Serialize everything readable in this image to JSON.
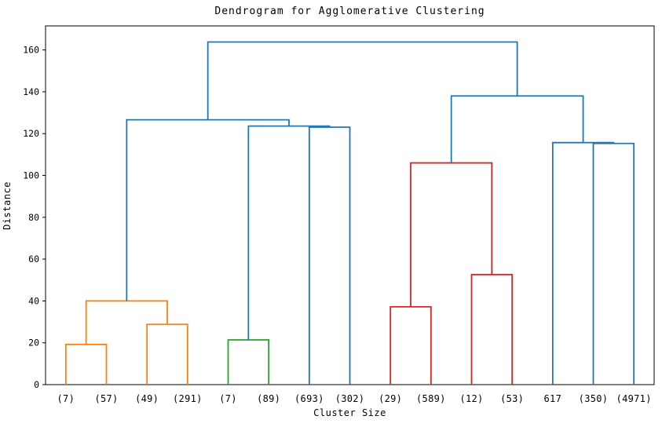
{
  "chart_data": {
    "type": "dendrogram",
    "title": "Dendrogram for Agglomerative Clustering",
    "xlabel": "Cluster Size",
    "ylabel": "Distance",
    "ylim": [
      0,
      171.5
    ],
    "yticks": [
      0,
      20,
      40,
      60,
      80,
      100,
      120,
      140,
      160
    ],
    "grid": false,
    "leaves": [
      "(7)",
      "(57)",
      "(49)",
      "(291)",
      "(7)",
      "(89)",
      "(693)",
      "(302)",
      "(29)",
      "(589)",
      "(12)",
      "(53)",
      "617",
      "(350)",
      "(4971)"
    ],
    "colors": {
      "blue": "#1f77b4",
      "orange": "#ff7f0e",
      "green": "#2ca02c",
      "red": "#d62728"
    },
    "merges": [
      {
        "id": "O1",
        "left": "L0",
        "right": "L1",
        "height": 19.2,
        "color": "orange"
      },
      {
        "id": "O2",
        "left": "L2",
        "right": "L3",
        "height": 28.8,
        "color": "orange"
      },
      {
        "id": "O3",
        "left": "O1",
        "right": "O2",
        "height": 40.0,
        "color": "orange"
      },
      {
        "id": "G1",
        "left": "L4",
        "right": "L5",
        "height": 21.4,
        "color": "green"
      },
      {
        "id": "B1",
        "left": "L6",
        "right": "L7",
        "height": 123.1,
        "color": "blue"
      },
      {
        "id": "B2",
        "left": "G1",
        "right": "B1",
        "height": 123.6,
        "color": "blue"
      },
      {
        "id": "B3",
        "left": "O3",
        "right": "B2",
        "height": 126.6,
        "color": "blue"
      },
      {
        "id": "R1",
        "left": "L8",
        "right": "L9",
        "height": 37.2,
        "color": "red"
      },
      {
        "id": "R2",
        "left": "L10",
        "right": "L11",
        "height": 52.6,
        "color": "red"
      },
      {
        "id": "R3",
        "left": "R1",
        "right": "R2",
        "height": 106.0,
        "color": "red"
      },
      {
        "id": "B4",
        "left": "L13",
        "right": "L14",
        "height": 115.3,
        "color": "blue"
      },
      {
        "id": "B5",
        "left": "L12",
        "right": "B4",
        "height": 115.7,
        "color": "blue"
      },
      {
        "id": "B6",
        "left": "R3",
        "right": "B5",
        "height": 138.0,
        "color": "blue"
      },
      {
        "id": "ROOT",
        "left": "B3",
        "right": "B6",
        "height": 163.8,
        "color": "blue"
      }
    ]
  }
}
